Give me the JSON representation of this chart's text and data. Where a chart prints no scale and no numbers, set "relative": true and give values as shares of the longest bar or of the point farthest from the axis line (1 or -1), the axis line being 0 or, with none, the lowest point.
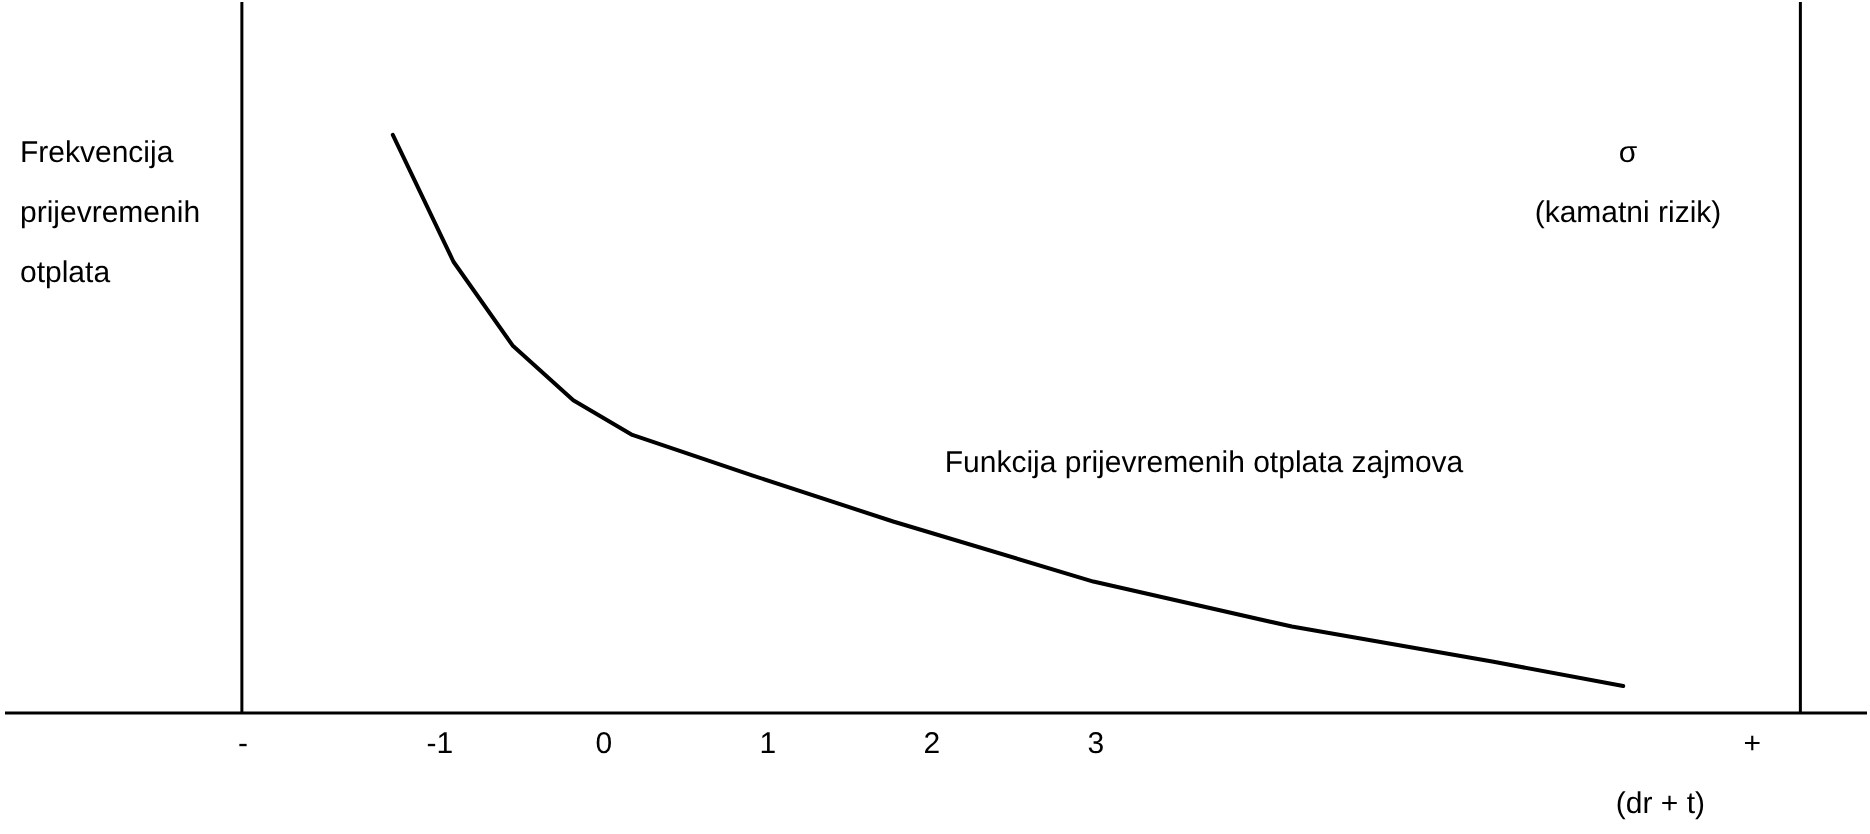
{
  "chart_data": {
    "type": "line",
    "relative": true,
    "ylabel": "Frekvencija\nprijevremenih\notplata",
    "y2label": "σ\n(kamatni rizik)",
    "xlabel": "(dr + t)",
    "x": [
      -1.28,
      -0.91,
      -0.55,
      -0.18,
      0.18,
      0.91,
      1.77,
      2.99,
      4.2,
      5.43,
      6.22
    ],
    "series": [
      {
        "color": "#000000",
        "values": [
          1.0,
          0.78,
          0.635,
          0.54,
          0.48,
          0.41,
          0.33,
          0.226,
          0.148,
          0.087,
          0.045
        ]
      }
    ],
    "xlim": [
      -3.65,
      7.7
    ],
    "xticks": [
      {
        "value": -2.2,
        "label": "-"
      },
      -1,
      0,
      1,
      2,
      3,
      {
        "value": 7.0,
        "label": "+"
      }
    ],
    "ref_lines": [
      {
        "axis": "x",
        "value": -2.2,
        "color": "#000000"
      },
      {
        "axis": "x",
        "value": 7.3,
        "color": "#000000"
      }
    ],
    "annotations": [
      "Funkcija prijevremenih otplata zajmova"
    ],
    "grid": false,
    "marker": "none",
    "line_style": "solid"
  }
}
